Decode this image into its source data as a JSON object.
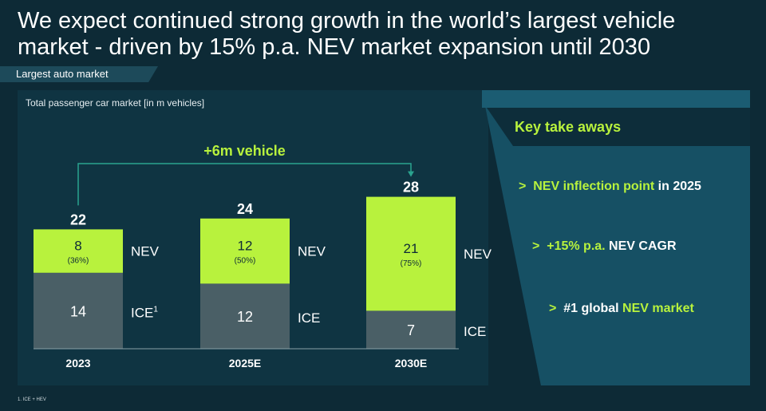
{
  "title": "We expect continued strong growth in the world’s largest vehicle market - driven by 15% p.a. NEV market expansion until 2030",
  "section_tag": "Largest auto market",
  "footnote": "1. ICE + HEV",
  "key_takeaways": {
    "heading": "Key take aways",
    "items": [
      {
        "chevron": ">",
        "highlight": "NEV inflection point",
        "rest": " in 2025"
      },
      {
        "chevron": ">",
        "highlight": "+15% p.a.",
        "rest": " NEV CAGR"
      },
      {
        "chevron": ">",
        "prefix": "#1 global ",
        "highlight": "NEV market"
      }
    ]
  },
  "colors": {
    "nev": "#b8f23d",
    "ice": "#4a5f66",
    "accent": "#b8f23d",
    "arrow": "#2aa38f"
  },
  "chart_data": {
    "type": "bar",
    "stacked": true,
    "title": "Total passenger car market [in m vehicles]",
    "categories": [
      "2023",
      "2025E",
      "2030E"
    ],
    "series": [
      {
        "name": "ICE",
        "legend_labels": [
          "ICE",
          "ICE",
          "ICE"
        ],
        "values": [
          14,
          12,
          7
        ],
        "labels": [
          "14",
          "12",
          "7"
        ]
      },
      {
        "name": "NEV",
        "legend_labels": [
          "NEV",
          "NEV",
          "NEV"
        ],
        "values": [
          8,
          12,
          21
        ],
        "labels": [
          "8",
          "12",
          "21"
        ],
        "shares": [
          "(36%)",
          "(50%)",
          "(75%)"
        ]
      }
    ],
    "totals": [
      "22",
      "24",
      "28"
    ],
    "ice_superscript": "1",
    "growth_annotation": "+6m vehicle",
    "ylim": [
      0,
      28
    ]
  }
}
